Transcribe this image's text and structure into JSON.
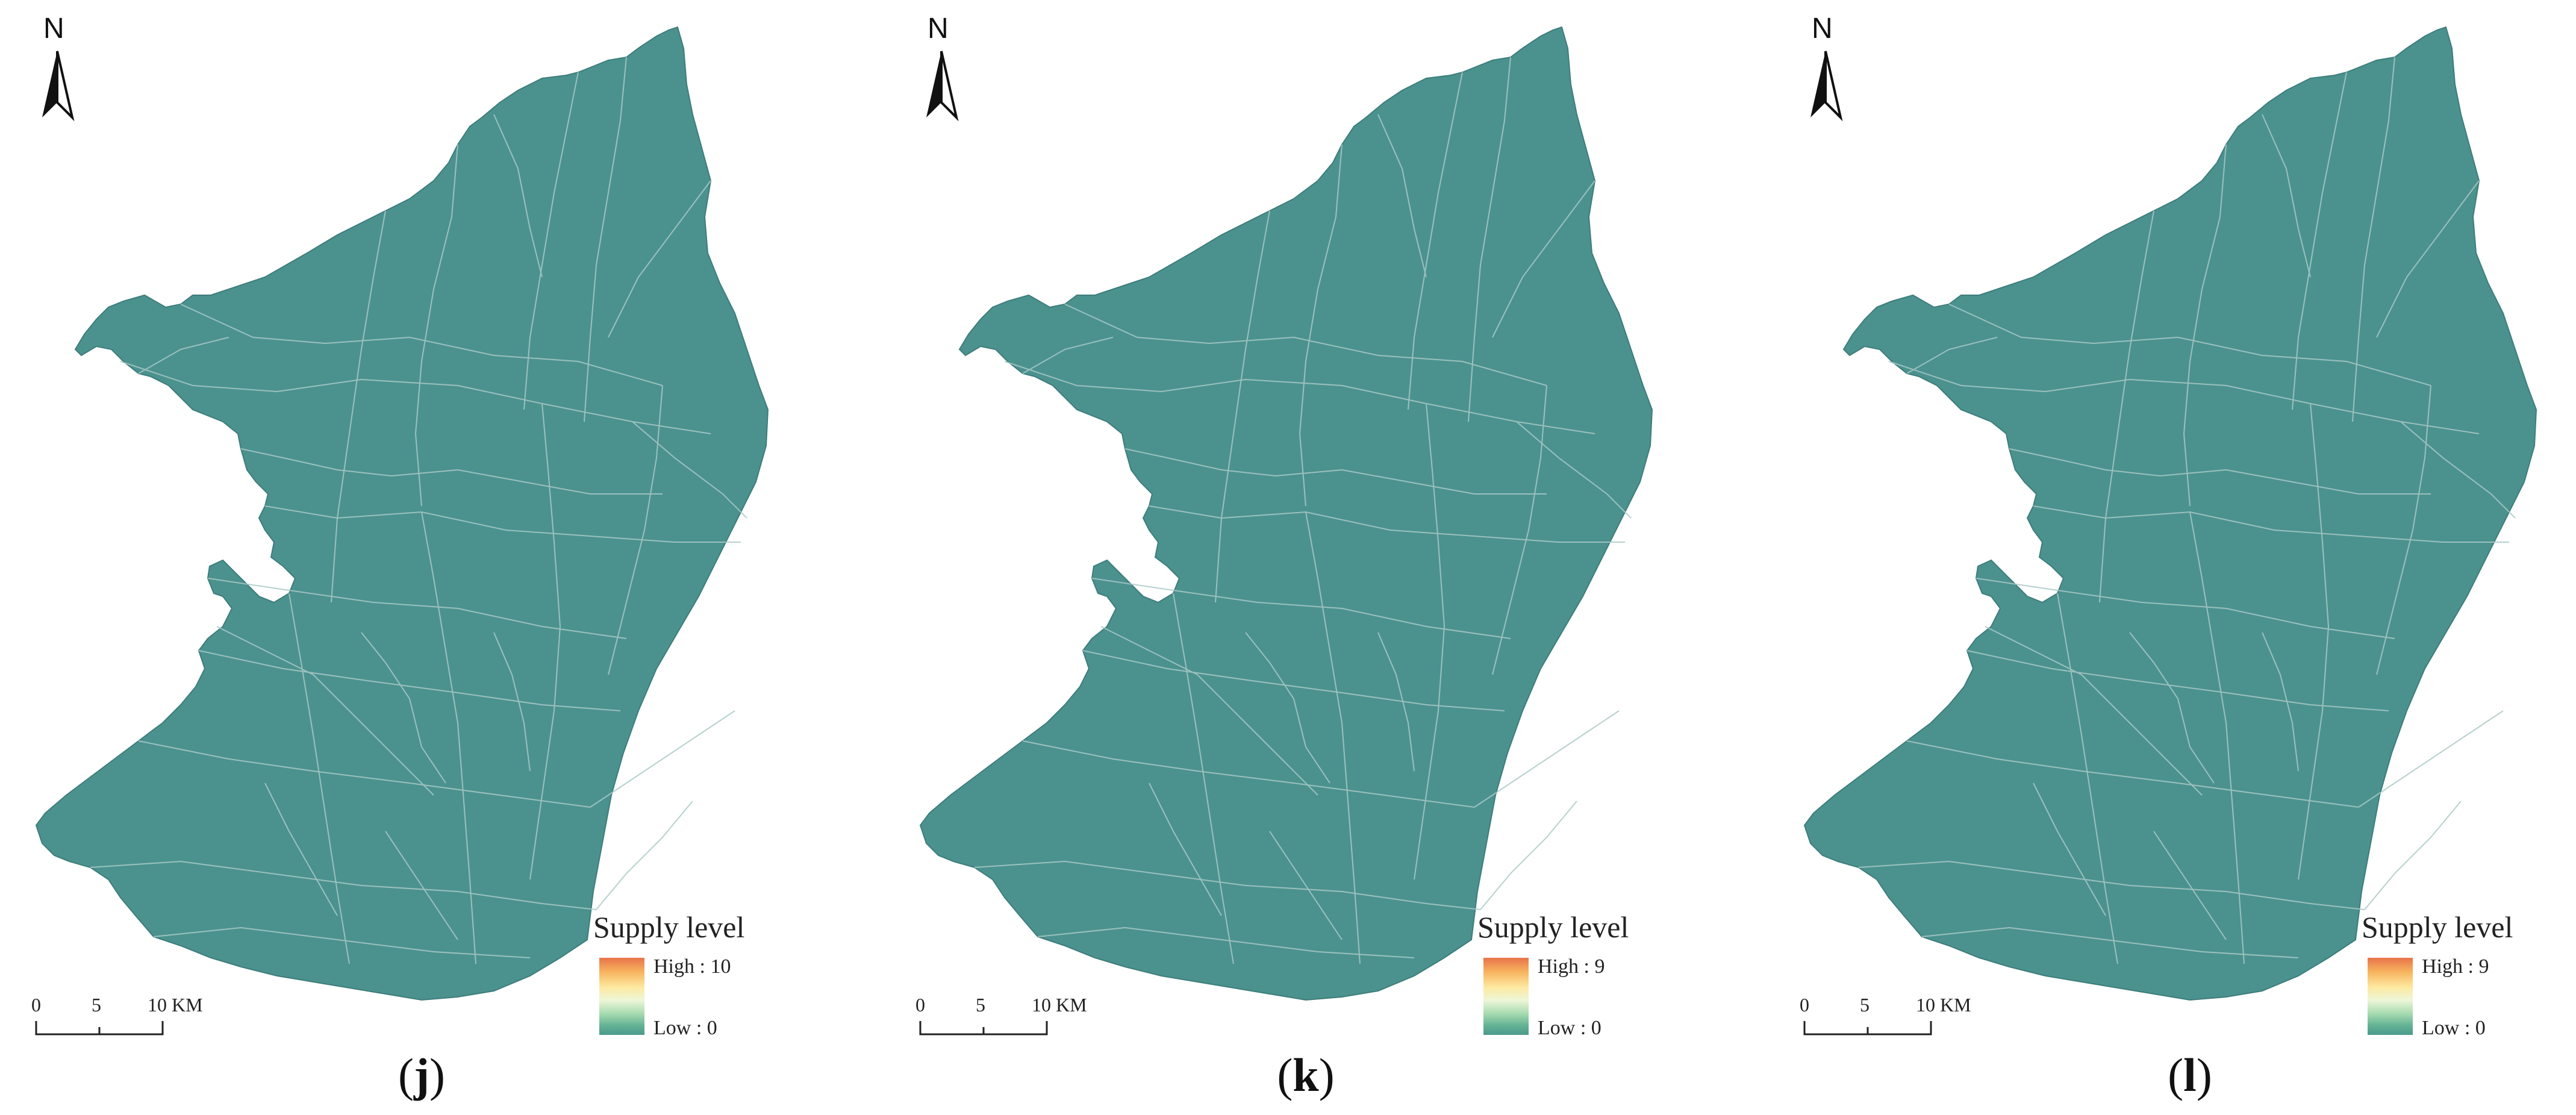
{
  "panels": [
    {
      "caption_letter": "j",
      "legend_title": "Supply level",
      "legend_high": "High : 10",
      "legend_low": "Low : 0"
    },
    {
      "caption_letter": "k",
      "legend_title": "Supply level",
      "legend_high": "High : 9",
      "legend_low": "Low : 0"
    },
    {
      "caption_letter": "l",
      "legend_title": "Supply level",
      "legend_high": "High : 9",
      "legend_low": "Low : 0"
    }
  ],
  "north_label": "N",
  "scale": {
    "tick0": "0",
    "tick5": "5",
    "tick10": "10 KM"
  },
  "colors": {
    "region_fill": "#4b928f",
    "boundary_line": "#a9c9c6",
    "ramp_high": "#e8734a",
    "ramp_mid": "#fde9a0",
    "ramp_low": "#4a9a8c"
  }
}
